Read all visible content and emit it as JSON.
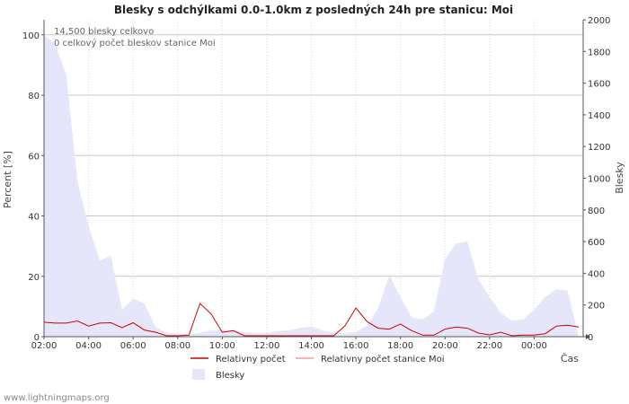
{
  "chart_data": {
    "type": "line",
    "title": "Blesky s odchýlkami 0.0-1.0km z posledných 24h pre stanicu: Moi",
    "ylabel_left": "Percent   [%]",
    "ylabel_right": "Blesky",
    "xlabel": "Čas",
    "ylim_left": [
      0,
      105
    ],
    "ylim_right": [
      0,
      2000
    ],
    "yticks_left": [
      0,
      20,
      40,
      60,
      80,
      100
    ],
    "yticks_right": [
      0,
      200,
      400,
      600,
      800,
      1000,
      1200,
      1400,
      1600,
      1800,
      2000
    ],
    "x_range_hours": [
      2,
      26.2
    ],
    "x_ticks": [
      {
        "h": 2,
        "label": "02:00"
      },
      {
        "h": 4,
        "label": "04:00"
      },
      {
        "h": 6,
        "label": "06:00"
      },
      {
        "h": 8,
        "label": "08:00"
      },
      {
        "h": 10,
        "label": "10:00"
      },
      {
        "h": 12,
        "label": "12:00"
      },
      {
        "h": 14,
        "label": "14:00"
      },
      {
        "h": 16,
        "label": "16:00"
      },
      {
        "h": 18,
        "label": "18:00"
      },
      {
        "h": 20,
        "label": "20:00"
      },
      {
        "h": 22,
        "label": "22:00"
      },
      {
        "h": 24,
        "label": "00:00"
      }
    ],
    "annotations": [
      "14,500 blesky celkovo",
      "0 celkový počet bleskov stanice Moi"
    ],
    "series": [
      {
        "name": "Blesky",
        "axis": "right",
        "style": "area",
        "color": "#e6e6fb",
        "x": [
          2.0,
          2.5,
          3.0,
          3.5,
          4.0,
          4.5,
          5.0,
          5.5,
          6.0,
          6.5,
          7.0,
          7.5,
          8.0,
          8.5,
          9.0,
          9.5,
          10.0,
          10.5,
          11.0,
          11.5,
          12.0,
          12.5,
          13.0,
          13.5,
          14.0,
          14.5,
          15.0,
          15.5,
          16.0,
          16.5,
          17.0,
          17.5,
          18.0,
          18.5,
          19.0,
          19.5,
          20.0,
          20.5,
          21.0,
          21.5,
          22.0,
          22.5,
          23.0,
          23.5,
          24.0,
          24.5,
          25.0,
          25.5,
          26.0
        ],
        "values": [
          1900,
          1850,
          1650,
          980,
          700,
          480,
          510,
          170,
          240,
          210,
          60,
          25,
          20,
          15,
          25,
          40,
          45,
          40,
          30,
          25,
          25,
          35,
          40,
          55,
          65,
          40,
          25,
          20,
          30,
          70,
          180,
          390,
          250,
          120,
          110,
          160,
          490,
          590,
          600,
          360,
          250,
          150,
          100,
          110,
          170,
          250,
          300,
          290,
          0
        ]
      },
      {
        "name": "Relativny počet",
        "axis": "left",
        "style": "line",
        "color": "#cc0000",
        "x": [
          2.0,
          2.5,
          3.0,
          3.5,
          4.0,
          4.5,
          5.0,
          5.5,
          6.0,
          6.5,
          7.0,
          7.5,
          8.0,
          8.5,
          9.0,
          9.5,
          10.0,
          10.5,
          11.0,
          11.5,
          12.0,
          12.5,
          13.0,
          13.5,
          14.0,
          14.5,
          15.0,
          15.5,
          16.0,
          16.5,
          17.0,
          17.5,
          18.0,
          18.5,
          19.0,
          19.5,
          20.0,
          20.5,
          21.0,
          21.5,
          22.0,
          22.5,
          23.0,
          23.5,
          24.0,
          24.5,
          25.0,
          25.5,
          26.0
        ],
        "values": [
          4.8,
          4.5,
          4.5,
          5.2,
          3.5,
          4.5,
          4.6,
          3.0,
          4.6,
          2.2,
          1.5,
          0.3,
          0.3,
          0.5,
          11.0,
          7.5,
          1.5,
          2.0,
          0.3,
          0.3,
          0.3,
          0.3,
          0.3,
          0.3,
          0.3,
          0.3,
          0.3,
          3.5,
          9.5,
          5.0,
          2.8,
          2.5,
          4.2,
          2.0,
          0.5,
          0.5,
          2.5,
          3.2,
          2.8,
          1.2,
          0.6,
          1.5,
          0.3,
          0.5,
          0.5,
          1.0,
          3.5,
          3.8,
          3.2
        ]
      },
      {
        "name": "Relativny počet stanice Moi",
        "axis": "left",
        "style": "line",
        "color": "#ff9999",
        "x": [
          2.0,
          26.0
        ],
        "values": [
          0,
          0
        ]
      }
    ],
    "legend": [
      "Relativny počet",
      "Relativny počet stanice Moi",
      "Blesky"
    ]
  },
  "credit": "www.lightningmaps.org"
}
